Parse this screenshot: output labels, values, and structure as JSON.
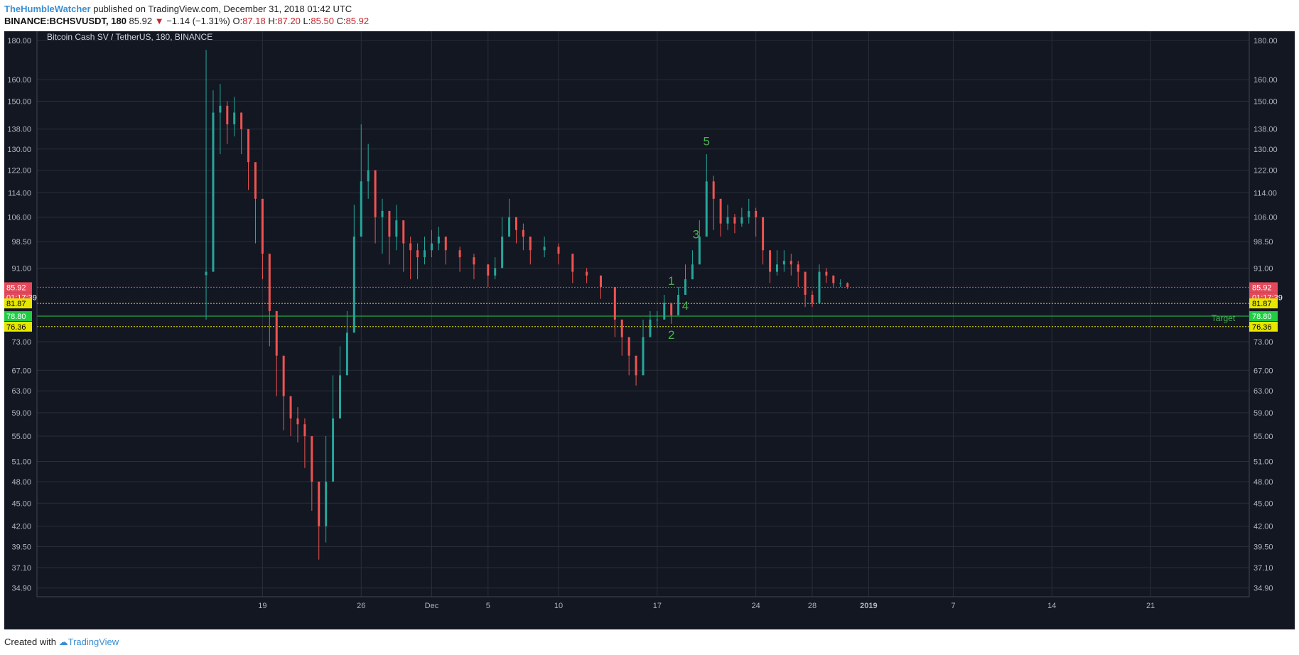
{
  "header": {
    "author": "TheHumbleWatcher",
    "published_text": "published on TradingView.com, December 31, 2018 01:42 UTC",
    "symbol": "BINANCE:BCHSVUSDT, 180",
    "last": "85.92",
    "change": "−1.14 (−1.31%)",
    "open_label": "O:",
    "open": "87.18",
    "high_label": "H:",
    "high": "87.20",
    "low_label": "L:",
    "low": "85.50",
    "close_label": "C:",
    "close": "85.92"
  },
  "footer": {
    "created_with": "Created with",
    "brand": "TradingView"
  },
  "chart_data": {
    "type": "candlestick",
    "title": "Bitcoin Cash SV / TetherUS, 180, BINANCE",
    "y_scale": "log",
    "ylim": [
      34.0,
      185.0
    ],
    "y_ticks": [
      "180.00",
      "160.00",
      "150.00",
      "138.00",
      "130.00",
      "122.00",
      "114.00",
      "106.00",
      "98.50",
      "91.00",
      "73.00",
      "67.00",
      "63.00",
      "59.00",
      "55.00",
      "51.00",
      "48.00",
      "45.00",
      "42.00",
      "39.50",
      "37.10",
      "34.90"
    ],
    "x_ticks": [
      {
        "label": "19",
        "date": "2018-11-19"
      },
      {
        "label": "26",
        "date": "2018-11-26"
      },
      {
        "label": "Dec",
        "date": "2018-12-01"
      },
      {
        "label": "5",
        "date": "2018-12-05"
      },
      {
        "label": "10",
        "date": "2018-12-10"
      },
      {
        "label": "17",
        "date": "2018-12-17"
      },
      {
        "label": "24",
        "date": "2018-12-24"
      },
      {
        "label": "28",
        "date": "2018-12-28"
      },
      {
        "label": "2019",
        "date": "2019-01-01"
      },
      {
        "label": "7",
        "date": "2019-01-07"
      },
      {
        "label": "14",
        "date": "2019-01-14"
      },
      {
        "label": "21",
        "date": "2019-01-21"
      }
    ],
    "xlim": [
      "2018-11-03",
      "2019-01-28"
    ],
    "price_path": [
      [
        "2018-11-15",
        90,
        175,
        78
      ],
      [
        "2018-11-15T12",
        145,
        155,
        120
      ],
      [
        "2018-11-16",
        148,
        158,
        128
      ],
      [
        "2018-11-16T12",
        140,
        150,
        132
      ],
      [
        "2018-11-17",
        145,
        152,
        135
      ],
      [
        "2018-11-17T12",
        138,
        145,
        128
      ],
      [
        "2018-11-18",
        125,
        132,
        115
      ],
      [
        "2018-11-18T12",
        112,
        118,
        98
      ],
      [
        "2018-11-19",
        95,
        100,
        88
      ],
      [
        "2018-11-19T12",
        80,
        90,
        72
      ],
      [
        "2018-11-20",
        70,
        76,
        62
      ],
      [
        "2018-11-20T12",
        62,
        68,
        56
      ],
      [
        "2018-11-21",
        58,
        62,
        55
      ],
      [
        "2018-11-21T12",
        57,
        60,
        54
      ],
      [
        "2018-11-22",
        55,
        58,
        50
      ],
      [
        "2018-11-22T12",
        48,
        52,
        44
      ],
      [
        "2018-11-23",
        42,
        45,
        38
      ],
      [
        "2018-11-23T12",
        48,
        55,
        40
      ],
      [
        "2018-11-24",
        58,
        66,
        54
      ],
      [
        "2018-11-24T12",
        66,
        72,
        60
      ],
      [
        "2018-11-25",
        75,
        80,
        68
      ],
      [
        "2018-11-25T12",
        100,
        110,
        85
      ],
      [
        "2018-11-26",
        118,
        140,
        105
      ],
      [
        "2018-11-26T12",
        122,
        132,
        112
      ],
      [
        "2018-11-27",
        106,
        114,
        98
      ],
      [
        "2018-11-27T12",
        108,
        112,
        95
      ],
      [
        "2018-11-28",
        100,
        106,
        92
      ],
      [
        "2018-11-28T12",
        105,
        110,
        96
      ],
      [
        "2018-11-29",
        98,
        104,
        90
      ],
      [
        "2018-11-29T12",
        96,
        100,
        88
      ],
      [
        "2018-11-30",
        94,
        98,
        88
      ],
      [
        "2018-11-30T12",
        96,
        100,
        92
      ],
      [
        "2018-12-01",
        98,
        102,
        94
      ],
      [
        "2018-12-01T12",
        100,
        103,
        96
      ],
      [
        "2018-12-02",
        96,
        99,
        92
      ],
      [
        "2018-12-03",
        94,
        97,
        90
      ],
      [
        "2018-12-04",
        92,
        95,
        88
      ],
      [
        "2018-12-05",
        89,
        92,
        86
      ],
      [
        "2018-12-05T12",
        91,
        94,
        88
      ],
      [
        "2018-12-06",
        100,
        106,
        95
      ],
      [
        "2018-12-06T12",
        106,
        112,
        102
      ],
      [
        "2018-12-07",
        102,
        106,
        98
      ],
      [
        "2018-12-07T12",
        100,
        104,
        96
      ],
      [
        "2018-12-08",
        96,
        100,
        92
      ],
      [
        "2018-12-09",
        97,
        100,
        94
      ],
      [
        "2018-12-10",
        95,
        98,
        92
      ],
      [
        "2018-12-11",
        90,
        93,
        87
      ],
      [
        "2018-12-12",
        89,
        91,
        87
      ],
      [
        "2018-12-13",
        86,
        89,
        83
      ],
      [
        "2018-12-14",
        78,
        82,
        74
      ],
      [
        "2018-12-14T12",
        74,
        77,
        70
      ],
      [
        "2018-12-15",
        70,
        73,
        66
      ],
      [
        "2018-12-15T12",
        66,
        69,
        64
      ],
      [
        "2018-12-16",
        74,
        78,
        70
      ],
      [
        "2018-12-16T12",
        78,
        80,
        75
      ],
      [
        "2018-12-17",
        78,
        80,
        76
      ],
      [
        "2018-12-17T12",
        82,
        84,
        80
      ],
      [
        "2018-12-18",
        79,
        82,
        77
      ],
      [
        "2018-12-18T12",
        84,
        86,
        81
      ],
      [
        "2018-12-19",
        88,
        92,
        85
      ],
      [
        "2018-12-19T12",
        92,
        96,
        88
      ],
      [
        "2018-12-20",
        100,
        105,
        96
      ],
      [
        "2018-12-20T12",
        118,
        128,
        110
      ],
      [
        "2018-12-21",
        112,
        120,
        102
      ],
      [
        "2018-12-21T12",
        104,
        108,
        100
      ],
      [
        "2018-12-22",
        106,
        110,
        102
      ],
      [
        "2018-12-22T12",
        104,
        107,
        101
      ],
      [
        "2018-12-23",
        106,
        109,
        103
      ],
      [
        "2018-12-23T12",
        108,
        112,
        104
      ],
      [
        "2018-12-24",
        106,
        109,
        100
      ],
      [
        "2018-12-24T12",
        96,
        100,
        92
      ],
      [
        "2018-12-25",
        90,
        94,
        87
      ],
      [
        "2018-12-25T12",
        92,
        96,
        89
      ],
      [
        "2018-12-26",
        93,
        96,
        90
      ],
      [
        "2018-12-26T12",
        92,
        95,
        89
      ],
      [
        "2018-12-27",
        90,
        93,
        86
      ],
      [
        "2018-12-27T12",
        84,
        87,
        81
      ],
      [
        "2018-12-28",
        82,
        85,
        81
      ],
      [
        "2018-12-28T12",
        90,
        92,
        87
      ],
      [
        "2018-12-29",
        89,
        91,
        87
      ],
      [
        "2018-12-29T12",
        87,
        89,
        86
      ],
      [
        "2018-12-30",
        87,
        88,
        86
      ],
      [
        "2018-12-30T12",
        86,
        87.2,
        85.5
      ]
    ],
    "horizontal_lines": [
      {
        "price": 85.92,
        "color": "#e5485a",
        "style": "dotted",
        "label": "85.92",
        "sublabel": "01:17:39"
      },
      {
        "price": 81.87,
        "color": "#e6e600",
        "style": "dotted",
        "label": "81.87"
      },
      {
        "price": 78.8,
        "color": "#22cc44",
        "style": "solid",
        "label": "78.80"
      },
      {
        "price": 76.36,
        "color": "#e6e600",
        "style": "dotted",
        "label": "76.36"
      }
    ],
    "annotations": [
      {
        "text": "1",
        "date": "2018-12-18",
        "price": 86.5
      },
      {
        "text": "2",
        "date": "2018-12-18",
        "price": 73.6
      },
      {
        "text": "3",
        "date": "2018-12-19T18",
        "price": 99.5
      },
      {
        "text": "4",
        "date": "2018-12-19",
        "price": 80.3
      },
      {
        "text": "5",
        "date": "2018-12-20T12",
        "price": 131.5
      },
      {
        "text": "Target",
        "date": "2019-01-27",
        "price": 77.6
      }
    ],
    "colors": {
      "background": "#131722",
      "up": "#26a69a",
      "down": "#ef5350",
      "grid": "#2a2e39",
      "axis_text": "#b2b5be",
      "annotation": "#4caf50"
    }
  }
}
